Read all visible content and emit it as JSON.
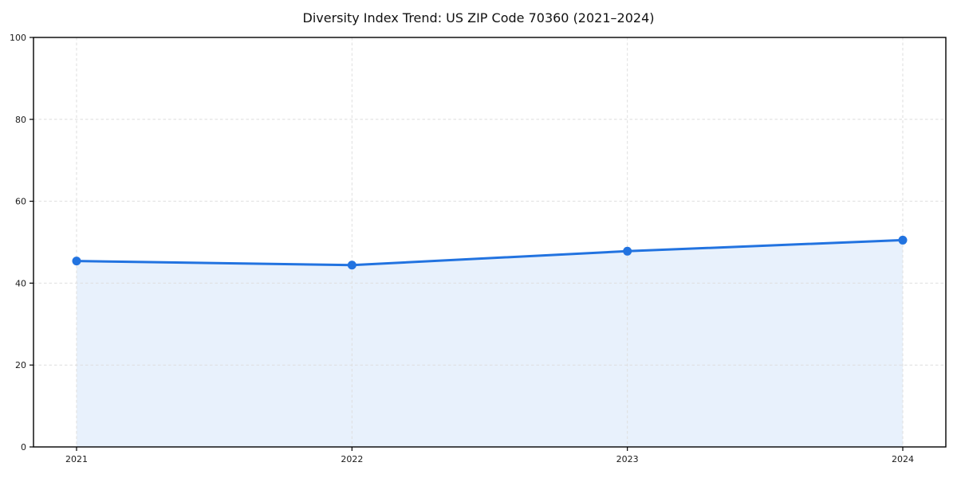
{
  "chart_data": {
    "type": "area",
    "title": "Diversity Index Trend: US ZIP Code 70360 (2021–2024)",
    "series_name": "Diversity Index",
    "categories": [
      "2021",
      "2022",
      "2023",
      "2024"
    ],
    "values": [
      45.4,
      44.4,
      47.8,
      50.5
    ],
    "xlabel": "",
    "ylabel": "",
    "ylim": [
      0,
      100
    ],
    "yticks": [
      0,
      20,
      40,
      60,
      80,
      100
    ],
    "grid": true,
    "grid_style": "dashed",
    "legend": "none",
    "colors": {
      "line": "#2273E0",
      "marker": "#2273E0",
      "fill": "#2273E0",
      "fill_opacity": 0.1,
      "grid": "#DEDEDE",
      "spine": "#000000",
      "text": "#1A1A1A",
      "background": "#FFFFFF"
    }
  }
}
